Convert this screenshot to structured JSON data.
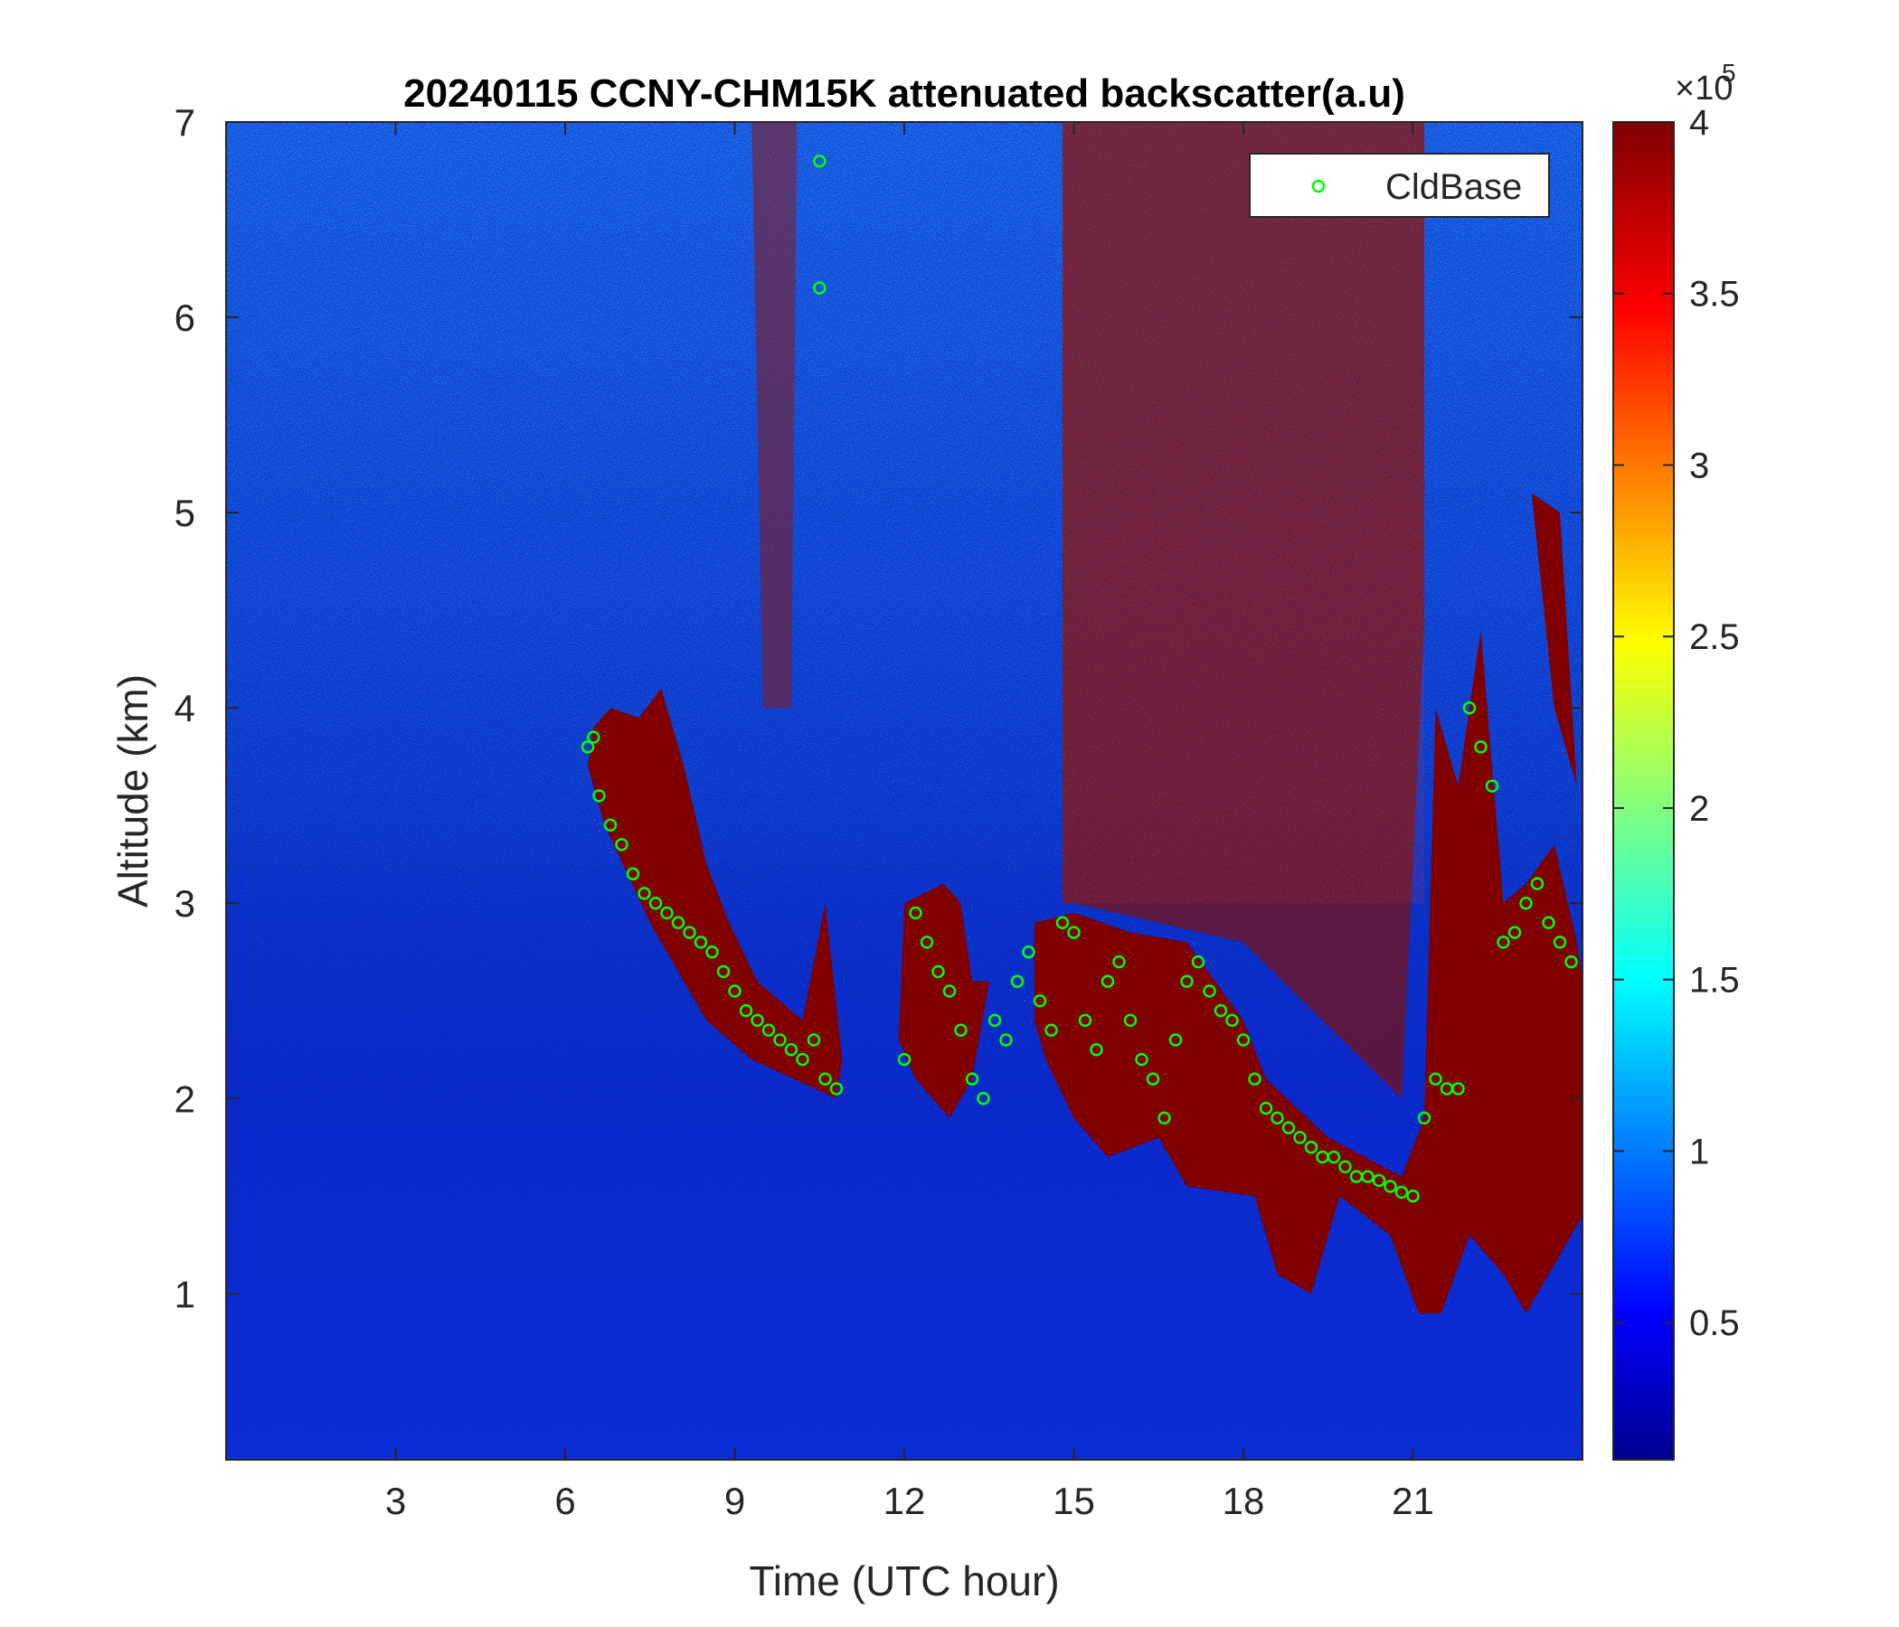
{
  "chart_data": {
    "type": "heatmap",
    "title": "20240115 CCNY-CHM15K attenuated backscatter(a.u)",
    "xlabel": "Time (UTC hour)",
    "ylabel": "Altitude (km)",
    "xlim": [
      0,
      24
    ],
    "ylim": [
      0.15,
      7
    ],
    "x_ticks": [
      3,
      6,
      9,
      12,
      15,
      18,
      21
    ],
    "y_ticks": [
      1,
      2,
      3,
      4,
      5,
      6,
      7
    ],
    "colorbar": {
      "colormap": "jet",
      "range": [
        10000,
        400000
      ],
      "ticks": [
        0.5,
        1,
        1.5,
        2,
        2.5,
        3,
        3.5,
        4
      ],
      "tick_labels": [
        "0.5",
        "1",
        "1.5",
        "2",
        "2.5",
        "3",
        "3.5",
        "4"
      ],
      "multiplier_label": "×10",
      "multiplier_exponent": "5"
    },
    "legend": {
      "entries": [
        "CldBase"
      ],
      "position": "top-right"
    },
    "colors": {
      "cloud_base_marker": "#00ff00",
      "background_low": "#0a23c8",
      "cloud": "#800000"
    },
    "series": [
      {
        "name": "CldBase",
        "type": "scatter",
        "x": [
          6.4,
          6.5,
          6.6,
          6.8,
          7.0,
          7.2,
          7.4,
          7.6,
          7.8,
          8.0,
          8.2,
          8.4,
          8.6,
          8.8,
          9.0,
          9.2,
          9.4,
          9.6,
          9.8,
          10.0,
          10.2,
          10.4,
          10.6,
          10.8,
          10.5,
          10.5,
          12.0,
          12.2,
          12.4,
          12.6,
          12.8,
          13.0,
          13.2,
          13.4,
          13.6,
          13.8,
          14.0,
          14.2,
          14.4,
          14.6,
          14.8,
          15.0,
          15.2,
          15.4,
          15.6,
          15.8,
          16.0,
          16.2,
          16.4,
          16.6,
          16.8,
          17.0,
          17.2,
          17.4,
          17.6,
          17.8,
          18.0,
          18.2,
          18.4,
          18.6,
          18.8,
          19.0,
          19.2,
          19.4,
          19.6,
          19.8,
          20.0,
          20.2,
          20.4,
          20.6,
          20.8,
          21.0,
          21.2,
          21.4,
          21.6,
          21.8,
          22.0,
          22.2,
          22.4,
          22.6,
          22.8,
          23.0,
          23.2,
          23.4,
          23.6,
          23.8
        ],
        "y": [
          3.8,
          3.85,
          3.55,
          3.4,
          3.3,
          3.15,
          3.05,
          3.0,
          2.95,
          2.9,
          2.85,
          2.8,
          2.75,
          2.65,
          2.55,
          2.45,
          2.4,
          2.35,
          2.3,
          2.25,
          2.2,
          2.3,
          2.1,
          2.05,
          6.8,
          6.15,
          2.2,
          2.95,
          2.8,
          2.65,
          2.55,
          2.35,
          2.1,
          2.0,
          2.4,
          2.3,
          2.6,
          2.75,
          2.5,
          2.35,
          2.9,
          2.85,
          2.4,
          2.25,
          2.6,
          2.7,
          2.4,
          2.2,
          2.1,
          1.9,
          2.3,
          2.6,
          2.7,
          2.55,
          2.45,
          2.4,
          2.3,
          2.1,
          1.95,
          1.9,
          1.85,
          1.8,
          1.75,
          1.7,
          1.7,
          1.65,
          1.6,
          1.6,
          1.58,
          1.55,
          1.52,
          1.5,
          1.9,
          2.1,
          2.05,
          2.05,
          4.0,
          3.8,
          3.6,
          2.8,
          2.85,
          3.0,
          3.1,
          2.9,
          2.8,
          2.7
        ]
      }
    ]
  }
}
